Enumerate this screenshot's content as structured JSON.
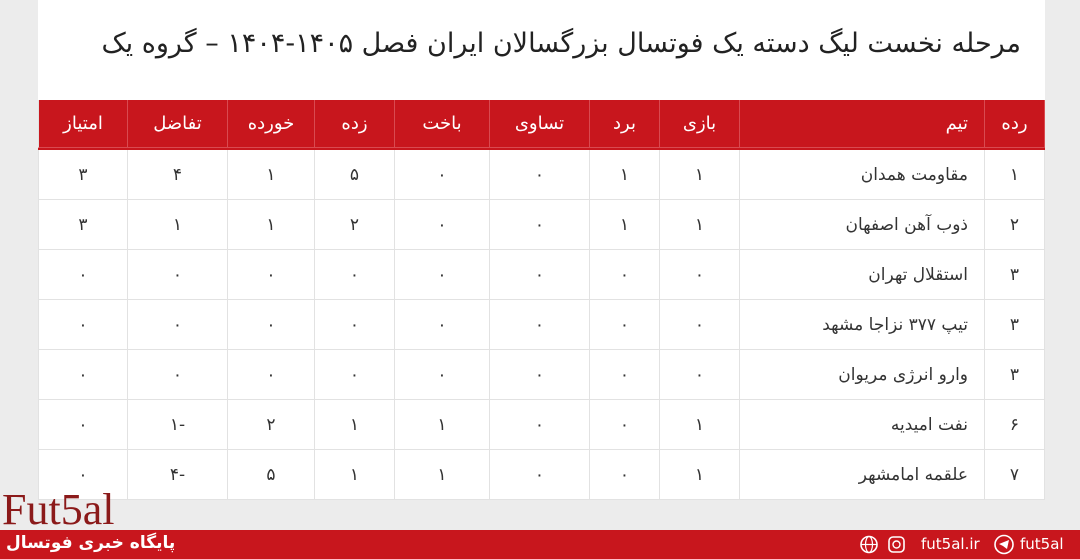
{
  "title": "مرحله نخست لیگ دسته یک فوتسال بزرگسالان ایران فصل ۱۴۰۵-۱۴۰۴ – گروه یک",
  "table": {
    "header": [
      "رده",
      "تیم",
      "بازی",
      "برد",
      "تساوی",
      "باخت",
      "زده",
      "خورده",
      "تفاضل",
      "امتیاز"
    ],
    "rows": [
      [
        "۱",
        "مقاومت همدان",
        "۱",
        "۱",
        "۰",
        "۰",
        "۵",
        "۱",
        "۴",
        "۳"
      ],
      [
        "۲",
        "ذوب آهن اصفهان",
        "۱",
        "۱",
        "۰",
        "۰",
        "۲",
        "۱",
        "۱",
        "۳"
      ],
      [
        "۳",
        "استقلال تهران",
        "۰",
        "۰",
        "۰",
        "۰",
        "۰",
        "۰",
        "۰",
        "۰"
      ],
      [
        "۳",
        "تیپ ۳۷۷ نزاجا مشهد",
        "۰",
        "۰",
        "۰",
        "۰",
        "۰",
        "۰",
        "۰",
        "۰"
      ],
      [
        "۳",
        "وارو انرژی مریوان",
        "۰",
        "۰",
        "۰",
        "۰",
        "۰",
        "۰",
        "۰",
        "۰"
      ],
      [
        "۶",
        "نفت امیدیه",
        "۱",
        "۰",
        "۰",
        "۱",
        "۱",
        "۲",
        "۱-",
        "۰"
      ],
      [
        "۷",
        "علقمه امامشهر",
        "۱",
        "۰",
        "۰",
        "۱",
        "۱",
        "۵",
        "۴-",
        "۰"
      ]
    ]
  },
  "footer": {
    "logo": "Fut5al",
    "tagline": "پایگاه خبری فوتسال",
    "website": "fut5al.ir",
    "handle": "fut5al"
  }
}
